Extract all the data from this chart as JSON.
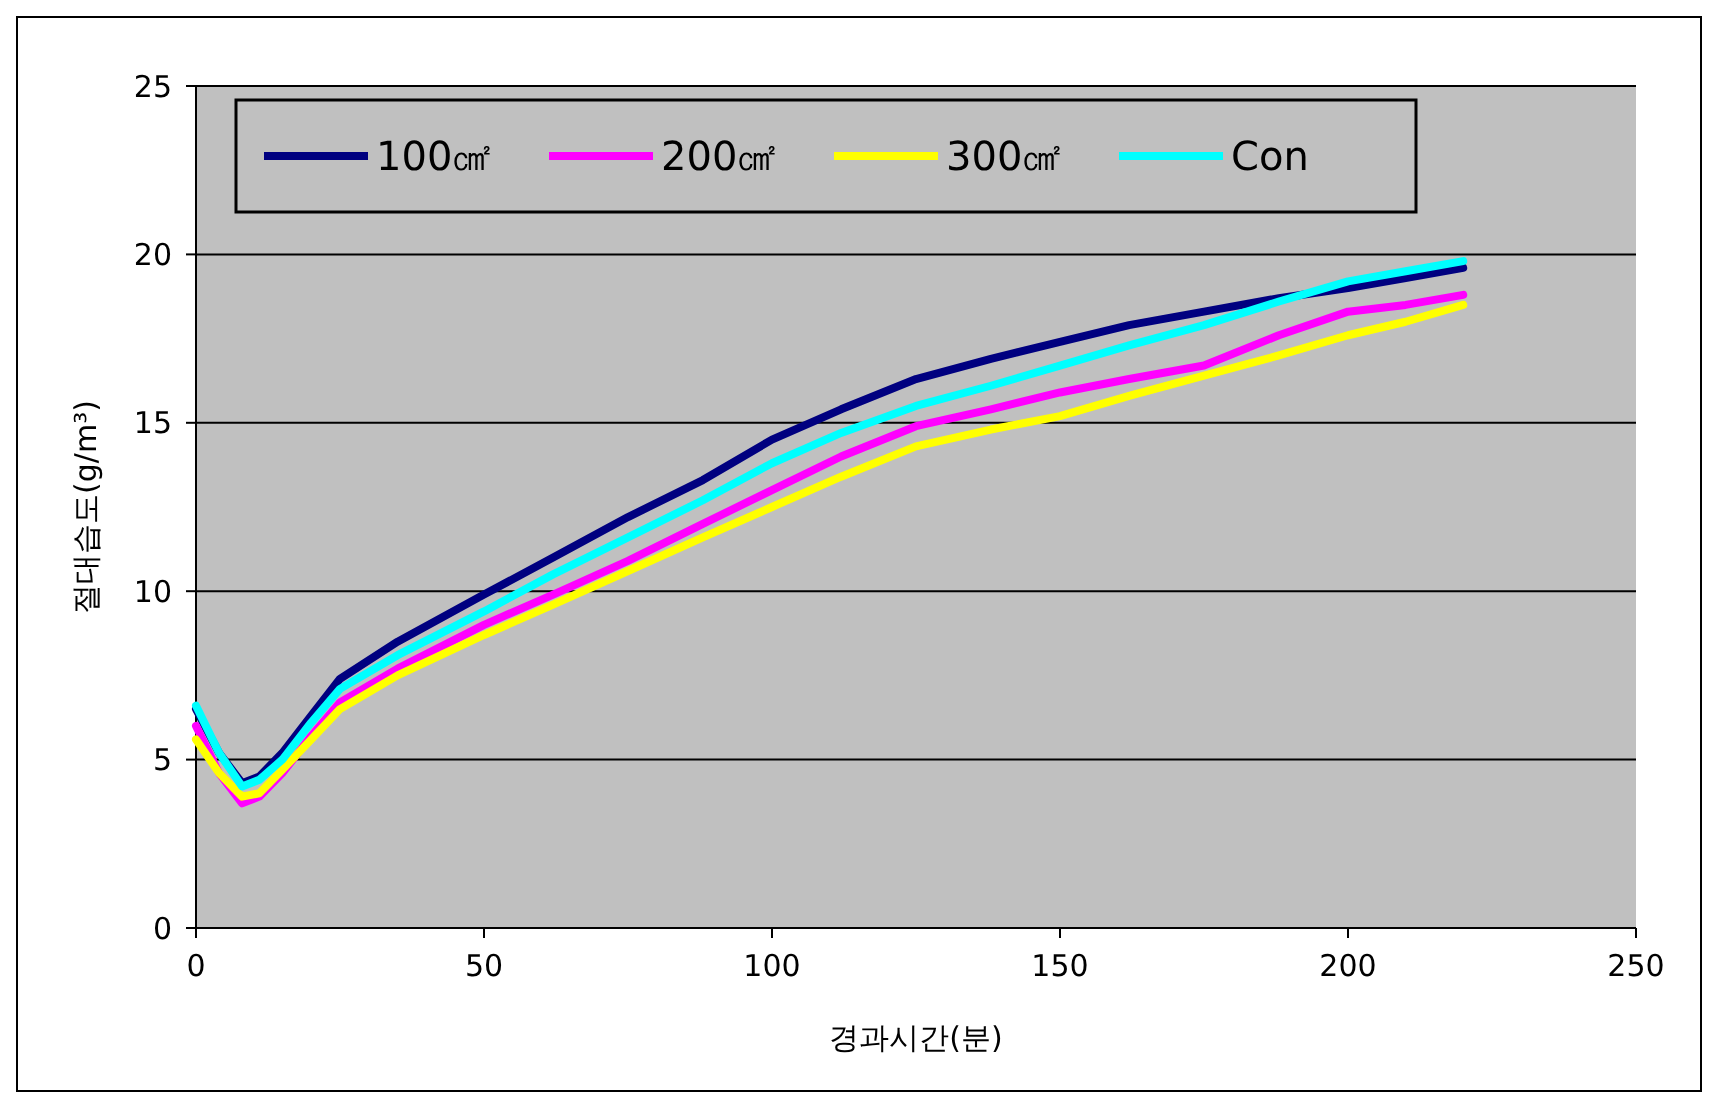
{
  "chart_data": {
    "type": "line",
    "xlabel": "경과시간(분)",
    "ylabel": "절대습도(g/m³)",
    "xlim": [
      0,
      250
    ],
    "xticks": [
      0,
      50,
      100,
      150,
      200,
      250
    ],
    "ylim": [
      0,
      25
    ],
    "yticks": [
      0,
      5,
      10,
      15,
      20,
      25
    ],
    "grid": "y",
    "legend": "top",
    "marker": "none",
    "line_style": "solid",
    "x": [
      0,
      4,
      8,
      11,
      15,
      20,
      25,
      35,
      50,
      62,
      75,
      88,
      100,
      112,
      125,
      138,
      150,
      162,
      175,
      188,
      200,
      210,
      220
    ],
    "series": [
      {
        "name": "100㎠",
        "color": "#000080",
        "values": [
          6.5,
          5.2,
          4.3,
          4.5,
          5.2,
          6.3,
          7.4,
          8.5,
          9.9,
          11.0,
          12.2,
          13.3,
          14.5,
          15.4,
          16.3,
          16.9,
          17.4,
          17.9,
          18.3,
          18.7,
          19.0,
          19.3,
          19.6
        ]
      },
      {
        "name": "200㎠",
        "color": "#ff00ff",
        "values": [
          6.0,
          4.6,
          3.7,
          3.9,
          4.6,
          5.7,
          6.7,
          7.7,
          9.0,
          9.9,
          10.9,
          12.0,
          13.0,
          14.0,
          14.9,
          15.4,
          15.9,
          16.3,
          16.7,
          17.6,
          18.3,
          18.5,
          18.8
        ]
      },
      {
        "name": "300㎠",
        "color": "#ffff00",
        "values": [
          5.6,
          4.6,
          3.9,
          4.0,
          4.7,
          5.6,
          6.5,
          7.5,
          8.7,
          9.6,
          10.6,
          11.6,
          12.5,
          13.4,
          14.3,
          14.8,
          15.2,
          15.8,
          16.4,
          17.0,
          17.6,
          18.0,
          18.5
        ]
      },
      {
        "name": "Con",
        "color": "#00ffff",
        "values": [
          6.6,
          5.2,
          4.2,
          4.4,
          5.0,
          6.1,
          7.1,
          8.1,
          9.4,
          10.5,
          11.6,
          12.7,
          13.8,
          14.7,
          15.5,
          16.1,
          16.7,
          17.3,
          17.9,
          18.6,
          19.2,
          19.5,
          19.8
        ]
      }
    ]
  }
}
